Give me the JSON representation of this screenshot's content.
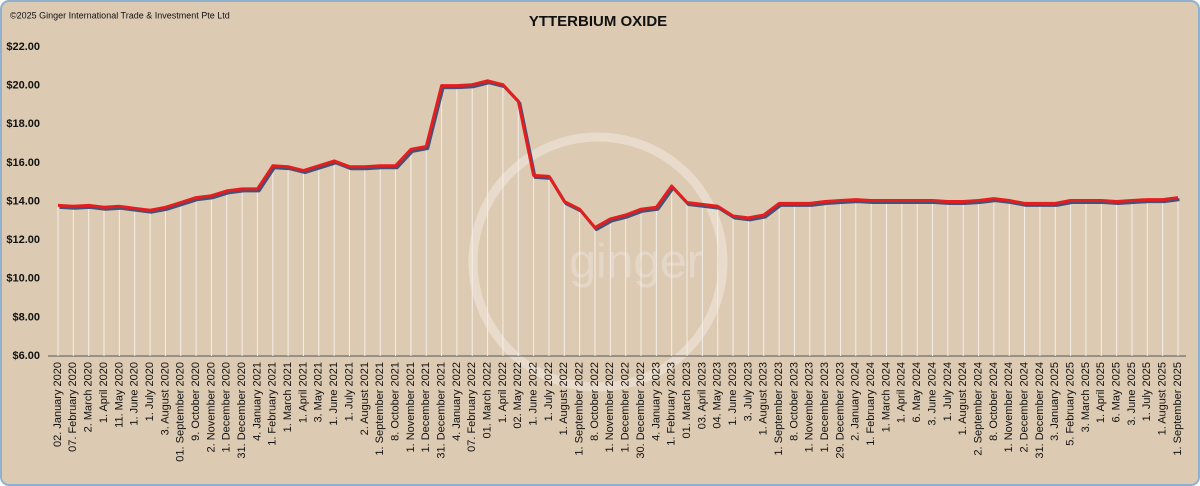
{
  "chart_data": {
    "type": "line",
    "title": "YTTERBIUM OXIDE",
    "copyright": "©2025 Ginger International Trade & Investment Pte Ltd",
    "watermark": "ginger",
    "categories": [
      "02. January 2020",
      "07. February 2020",
      "2. March 2020",
      "1. April 2020",
      "11. May 2020",
      "1. June 2020",
      "1. July 2020",
      "3. August 2020",
      "01. September 2020",
      "9. October 2020",
      "2. November 2020",
      "1. December 2020",
      "31. December 2020",
      "4. January 2021",
      "1. February 2021",
      "1. March 2021",
      "1. April 2021",
      "3. May 2021",
      "1. June 2021",
      "1. July 2021",
      "2. August 2021",
      "1. September 2021",
      "8. October 2021",
      "1. November 2021",
      "1. December 2021",
      "31. December 2021",
      "4. January 2022",
      "07. February 2022",
      "01. March 2022",
      "1. April 2022",
      "02. May 2022",
      "1. June 2022",
      "1. July 2022",
      "1. August 2022",
      "1. September 2022",
      "8. October 2022",
      "1. November 2022",
      "1. December 2022",
      "30. December 2022",
      "4. January 2023",
      "1. February 2023",
      "01. March 2023",
      "03. April 2023",
      "04. May 2023",
      "1. June 2023",
      "3. July 2023",
      "1. August 2023",
      "1. September 2023",
      "8. October 2023",
      "1. November 2023",
      "1. December 2023",
      "29. December 2023",
      "2. January 2024",
      "1. February 2024",
      "1. March 2024",
      "1. April 2024",
      "6. May 2024",
      "3. June 2024",
      "1. July 2024",
      "1. August 2024",
      "2. September 2024",
      "8. October 2024",
      "1. November 2024",
      "2. December 2024",
      "31. December 2024",
      "3. January 2025",
      "5. February 2025",
      "3. March 2025",
      "1. April 2025",
      "6. May 2025",
      "3. June 2025",
      "1. July 2025",
      "1. August 2025",
      "1. September 2025"
    ],
    "series": [
      {
        "name": "Ytterbium Oxide",
        "color": "#e41e1e",
        "values": [
          13.8,
          13.75,
          13.8,
          13.7,
          13.75,
          13.65,
          13.55,
          13.7,
          13.95,
          14.2,
          14.3,
          14.55,
          14.65,
          14.65,
          15.85,
          15.8,
          15.6,
          15.85,
          16.1,
          15.8,
          15.8,
          15.85,
          15.85,
          16.7,
          16.85,
          20.0,
          20.0,
          20.05,
          20.25,
          20.05,
          19.2,
          15.35,
          15.3,
          14.0,
          13.6,
          12.65,
          13.1,
          13.3,
          13.6,
          13.7,
          14.8,
          13.95,
          13.85,
          13.75,
          13.25,
          13.15,
          13.3,
          13.9,
          13.9,
          13.9,
          14.0,
          14.05,
          14.1,
          14.05,
          14.05,
          14.05,
          14.05,
          14.05,
          14.0,
          14.0,
          14.05,
          14.15,
          14.05,
          13.9,
          13.9,
          13.9,
          14.05,
          14.05,
          14.05,
          14.0,
          14.05,
          14.1,
          14.1,
          14.2
        ]
      }
    ],
    "ylim": [
      6,
      22
    ],
    "yticks": [
      {
        "value": 6,
        "label": "$6.00"
      },
      {
        "value": 8,
        "label": "$8.00"
      },
      {
        "value": 10,
        "label": "$10.00"
      },
      {
        "value": 12,
        "label": "$12.00"
      },
      {
        "value": 14,
        "label": "$14.00"
      },
      {
        "value": 16,
        "label": "$16.00"
      },
      {
        "value": 18,
        "label": "$18.00"
      },
      {
        "value": 20,
        "label": "$20.00"
      },
      {
        "value": 22,
        "label": "$22.00"
      }
    ],
    "grid": false
  }
}
